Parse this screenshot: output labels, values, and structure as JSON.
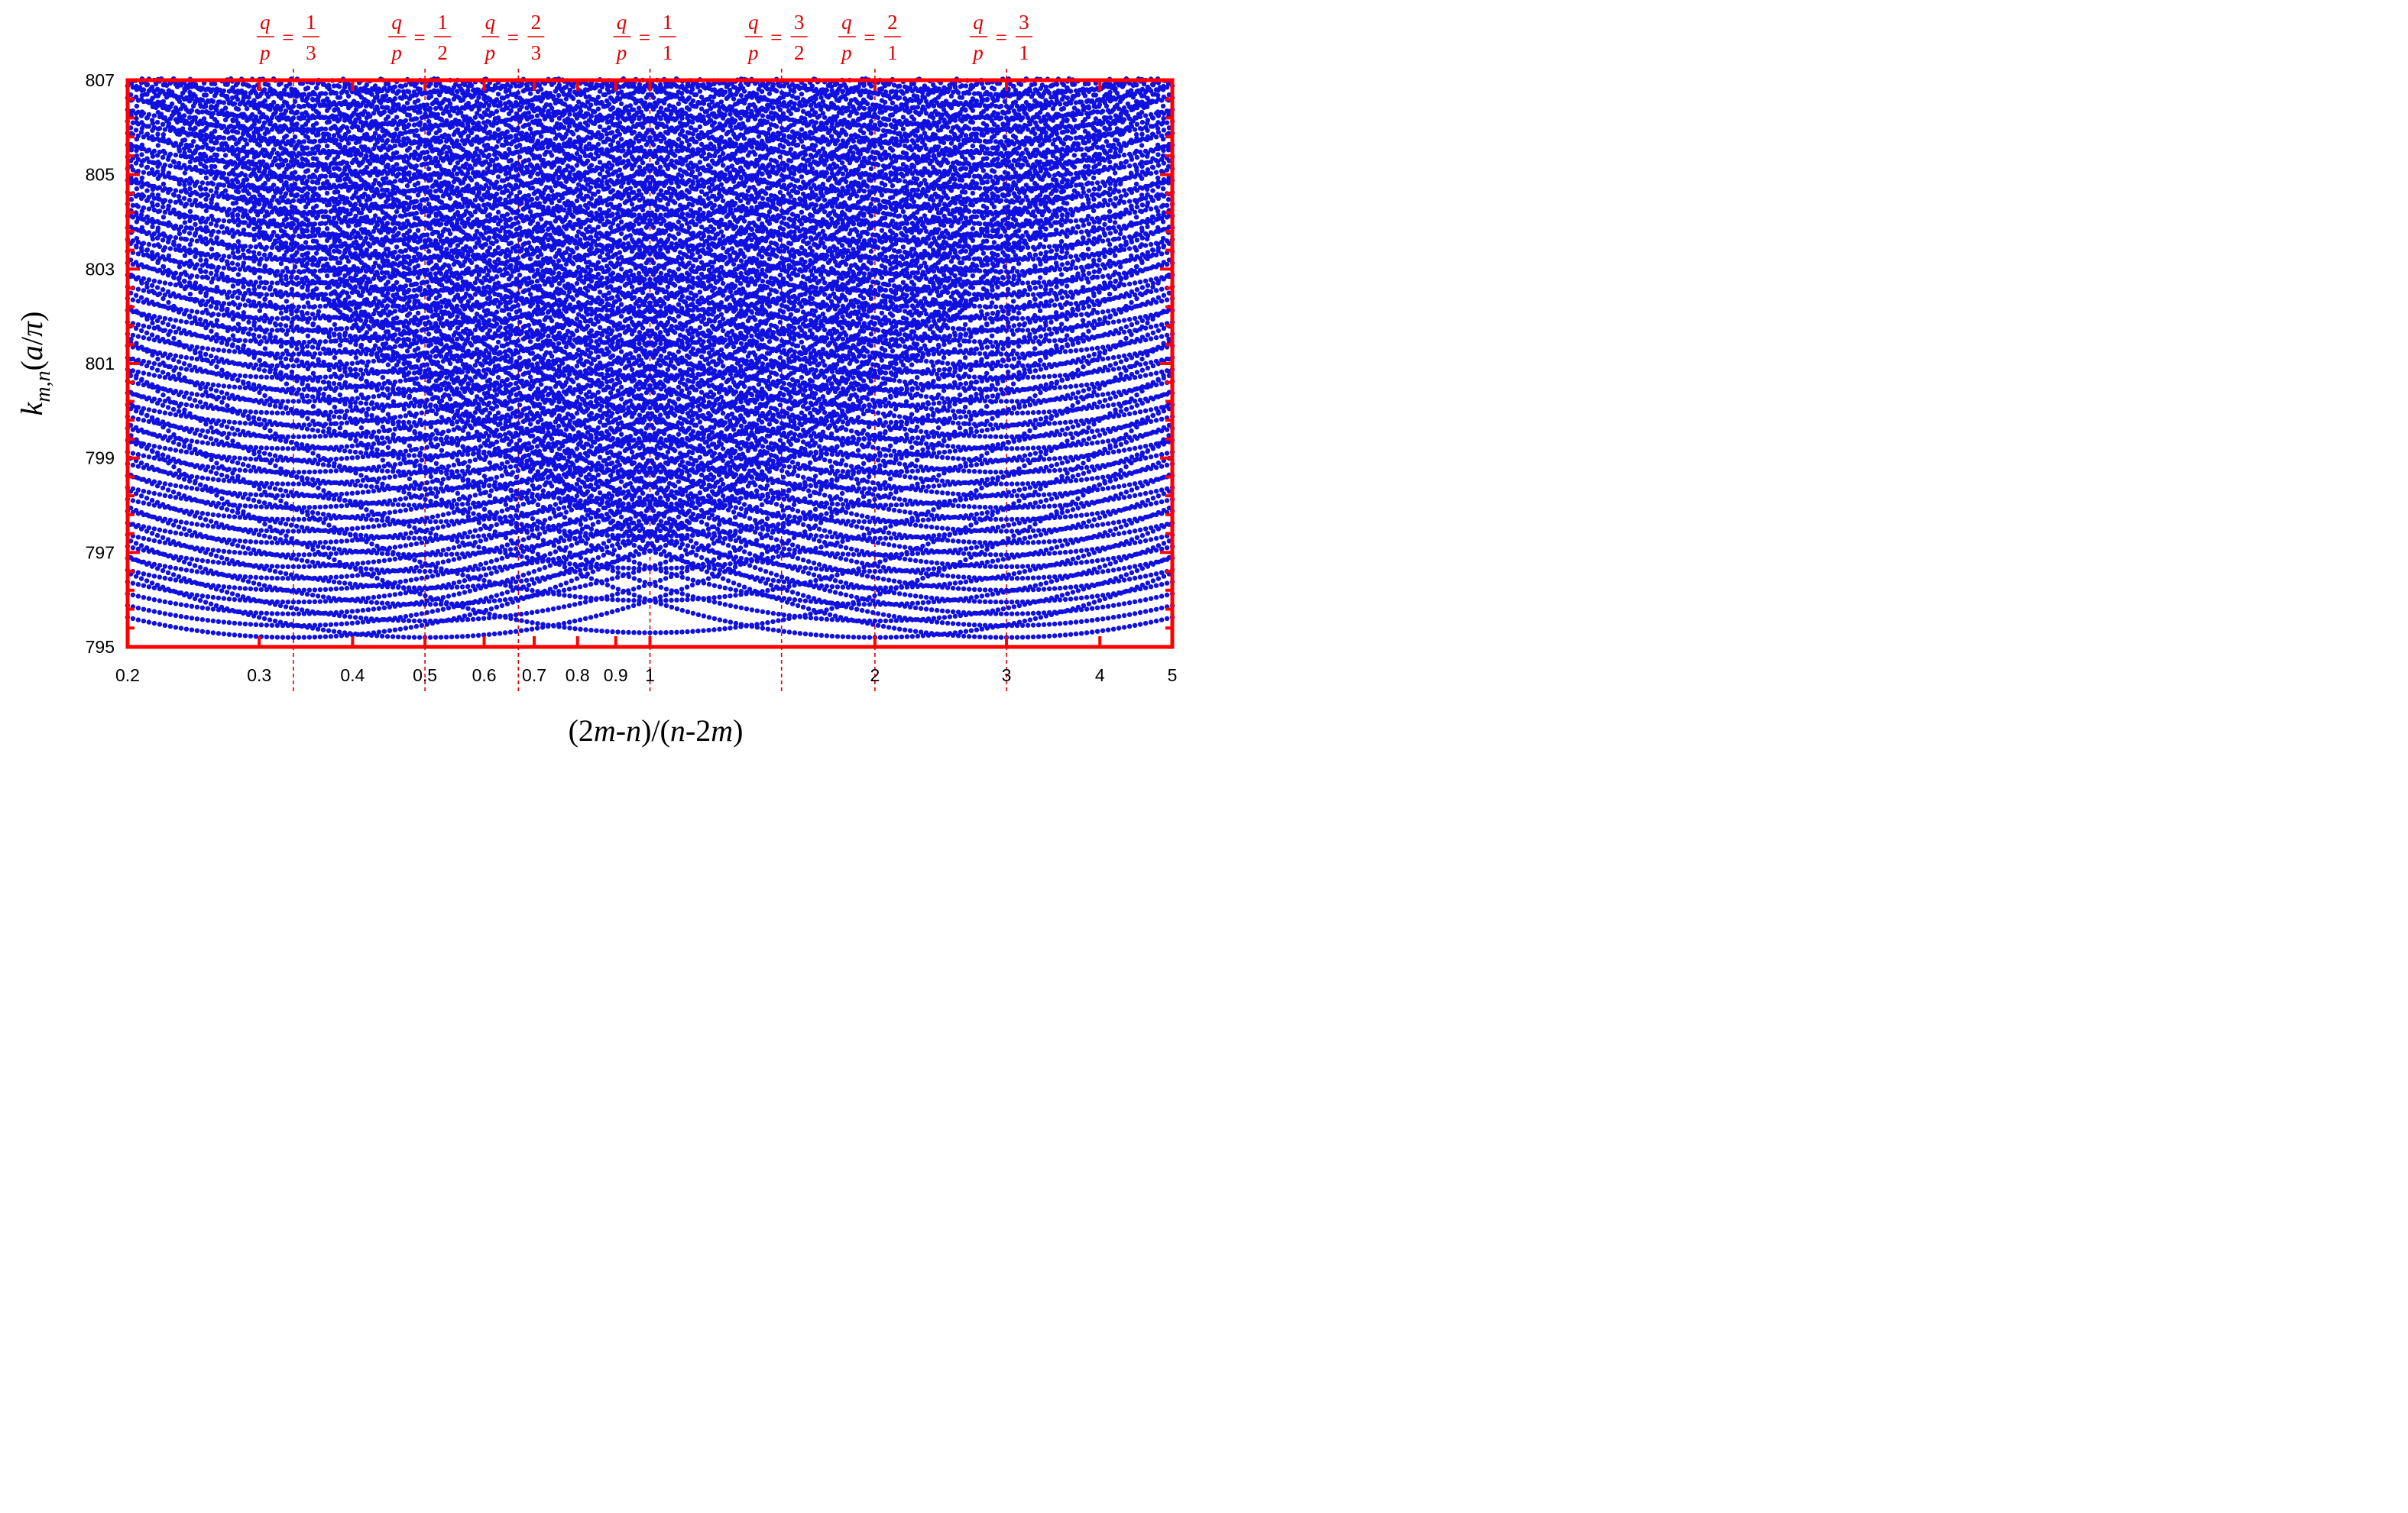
{
  "chart_data": {
    "type": "scatter",
    "title": "",
    "xlabel": "(2m-n)/(n-2m)",
    "ylabel": "k_{m,n}(a/π)",
    "xscale": "log",
    "xlim": [
      0.2,
      5
    ],
    "ylim": [
      795,
      807
    ],
    "x_ticks": [
      0.2,
      0.3,
      0.4,
      0.5,
      0.6,
      0.7,
      0.8,
      0.9,
      1,
      2,
      3,
      4,
      5
    ],
    "x_tick_labels": [
      "0.2",
      "0.3",
      "0.4",
      "0.5",
      "0.6",
      "0.7",
      "0.8",
      "0.9",
      "1",
      "2",
      "3",
      "4",
      "5"
    ],
    "y_ticks": [
      795,
      797,
      799,
      801,
      803,
      805,
      807
    ],
    "y_tick_labels": [
      "795",
      "797",
      "799",
      "801",
      "803",
      "805",
      "807"
    ],
    "y_minor_step": 0.4,
    "grid": false,
    "legend": "none",
    "colors": {
      "points": "#1010e0",
      "axes": "#ff0000",
      "reference_lines": "#e00000"
    },
    "reference_lines": [
      {
        "x": 0.3333,
        "q": "1",
        "p": "3"
      },
      {
        "x": 0.5,
        "q": "1",
        "p": "2"
      },
      {
        "x": 0.6667,
        "q": "2",
        "p": "3"
      },
      {
        "x": 1,
        "q": "1",
        "p": "1"
      },
      {
        "x": 1.5,
        "q": "3",
        "p": "2"
      },
      {
        "x": 2,
        "q": "2",
        "p": "1"
      },
      {
        "x": 3,
        "q": "3",
        "p": "1"
      }
    ],
    "series": [
      {
        "description": "dense families of points forming U-shaped arcs centred on the rational ratios; deepest minima 795.3 at x=1"
      }
    ],
    "arc_families": [
      {
        "center": 1,
        "minima": [
          795.3,
          795.98,
          796.66,
          797.34,
          798.02,
          798.7,
          799.38,
          800.06,
          800.74,
          801.42,
          802.1,
          802.78,
          803.46,
          804.14,
          804.82,
          805.5,
          806.18,
          806.86
        ]
      },
      {
        "center": 0.5,
        "minima": [
          795.2,
          795.55,
          795.9,
          796.25,
          796.6,
          796.95,
          797.3,
          797.65,
          798.0,
          798.35,
          798.7,
          799.05,
          799.4,
          799.75,
          800.1,
          800.45,
          800.8,
          801.15,
          801.5,
          801.85,
          802.2,
          802.55,
          802.9,
          803.25,
          803.6,
          803.95,
          804.3,
          804.65,
          805.0,
          805.35,
          805.7,
          806.05,
          806.4,
          806.75
        ]
      },
      {
        "center": 2,
        "minima": [
          795.2,
          795.55,
          795.9,
          796.25,
          796.6,
          796.95,
          797.3,
          797.65,
          798.0,
          798.35,
          798.7,
          799.05,
          799.4,
          799.75,
          800.1,
          800.45,
          800.8,
          801.15,
          801.5,
          801.85,
          802.2,
          802.55,
          802.9,
          803.25,
          803.6,
          803.95,
          804.3,
          804.65,
          805.0,
          805.35,
          805.7,
          806.05,
          806.4,
          806.75
        ]
      },
      {
        "center": 0.3333,
        "minima": [
          795.2,
          795.45,
          795.7,
          795.95,
          796.2,
          796.45,
          796.7,
          796.95,
          797.2,
          797.45,
          797.7,
          797.95,
          798.2,
          798.45,
          798.7,
          798.95,
          799.2,
          799.45,
          799.7,
          799.95,
          800.2,
          800.45,
          800.7,
          800.95,
          801.2,
          801.45,
          801.7,
          801.95,
          802.2,
          802.45,
          802.7,
          802.95,
          803.2,
          803.45,
          803.7,
          803.95,
          804.2,
          804.45,
          804.7,
          804.95,
          805.2,
          805.45,
          805.7,
          805.95,
          806.2,
          806.45,
          806.7
        ]
      },
      {
        "center": 3,
        "minima": [
          795.2,
          795.45,
          795.7,
          795.95,
          796.2,
          796.45,
          796.7,
          796.95,
          797.2,
          797.45,
          797.7,
          797.95,
          798.2,
          798.45,
          798.7,
          798.95,
          799.2,
          799.45,
          799.7,
          799.95,
          800.2,
          800.45,
          800.7,
          800.95,
          801.2,
          801.45,
          801.7,
          801.95,
          802.2,
          802.45,
          802.7,
          802.95,
          803.2,
          803.45,
          803.7,
          803.95,
          804.2,
          804.45,
          804.7,
          804.95,
          805.2,
          805.45,
          805.7,
          805.95,
          806.2,
          806.45,
          806.7
        ]
      }
    ]
  }
}
